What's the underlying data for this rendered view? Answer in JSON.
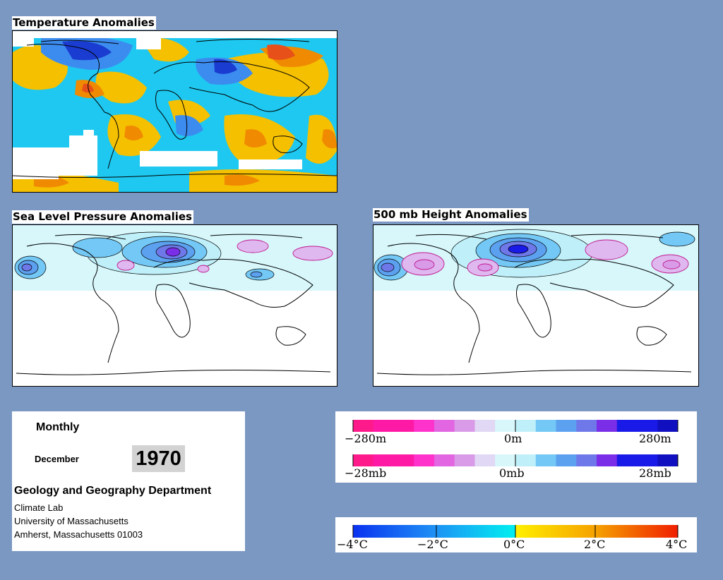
{
  "panels": {
    "temperature_title": "Temperature Anomalies",
    "slp_title": "Sea Level Pressure Anomalies",
    "height_title": "500 mb Height Anomalies"
  },
  "info": {
    "period": "Monthly",
    "month": "December",
    "year": "1970",
    "department": "Geology and Geography Department",
    "lab": "Climate Lab",
    "university": "University of Massachusetts",
    "address": "Amherst, Massachusetts 01003"
  },
  "legend_height": {
    "labels": [
      "−280m",
      "0m",
      "280m"
    ],
    "colors": [
      "#ff1a8c",
      "#ff1aa6",
      "#ff1aa6",
      "#ff33cc",
      "#e266e2",
      "#d99be8",
      "#e0d8f4",
      "#d7f7fb",
      "#bff0fa",
      "#73c8f5",
      "#5ca0f0",
      "#6e78e8",
      "#7a2ee8",
      "#1a1ae8",
      "#1a1ae8",
      "#1010c0"
    ]
  },
  "legend_pressure": {
    "labels": [
      "−28mb",
      "0mb",
      "28mb"
    ],
    "colors": [
      "#ff1a8c",
      "#ff1aa6",
      "#ff1aa6",
      "#ff33cc",
      "#e266e2",
      "#d99be8",
      "#e0d8f4",
      "#d7f7fb",
      "#bff0fa",
      "#73c8f5",
      "#5ca0f0",
      "#6e78e8",
      "#7a2ee8",
      "#1a1ae8",
      "#1a1ae8",
      "#1010c0"
    ]
  },
  "legend_temperature": {
    "labels": [
      "−4°C",
      "−2°C",
      "0°C",
      "2°C",
      "4°C"
    ]
  }
}
